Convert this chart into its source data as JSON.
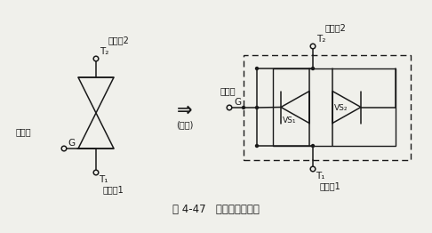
{
  "bg_color": "#f0f0eb",
  "lc": "#1a1a1a",
  "title": "图 4-47   双向晶闸管原理",
  "title_fs": 8.5,
  "lbl_fs": 7.5,
  "sub_fs": 7.0,
  "small_fs": 6.5,
  "arrow_symbol": "⇒",
  "equiv": "(等效)",
  "L_T2": "T₂",
  "L_T1": "T₁",
  "L_G": "G",
  "L_main2": "主电杗2",
  "L_main1": "主电杗1",
  "L_ctrl": "控制极",
  "R_T2": "T₂",
  "R_T1": "T₁",
  "R_G": "G",
  "R_main2": "主电杗2",
  "R_main1": "主电杗1",
  "R_ctrl": "控制极",
  "VS1": "VS₁",
  "VS2": "VS₂"
}
